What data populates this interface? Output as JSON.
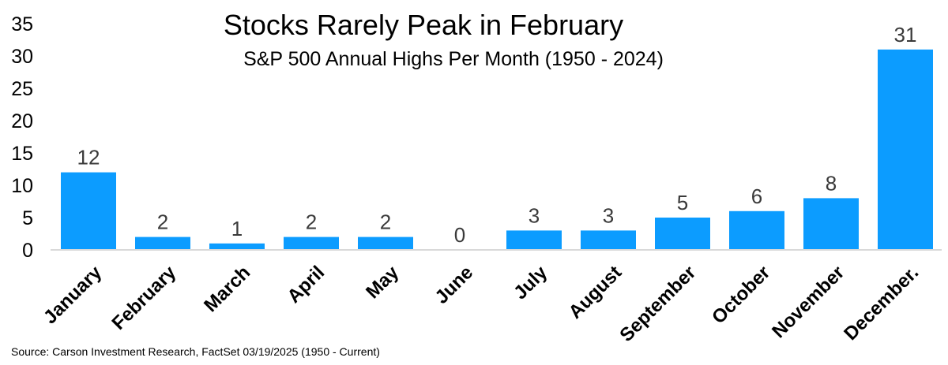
{
  "chart_data": {
    "type": "bar",
    "title": "Stocks Rarely Peak in February",
    "subtitle": "S&P 500 Annual Highs Per Month (1950 - 2024)",
    "categories": [
      "January",
      "February",
      "March",
      "April",
      "May",
      "June",
      "July",
      "August",
      "September",
      "October",
      "November",
      "December."
    ],
    "values": [
      12,
      2,
      1,
      2,
      2,
      0,
      3,
      3,
      5,
      6,
      8,
      31
    ],
    "data_labels": [
      "12",
      "2",
      "1",
      "2",
      "2",
      "0",
      "3",
      "3",
      "5",
      "6",
      "8",
      "31"
    ],
    "yticks": [
      "0",
      "5",
      "10",
      "15",
      "20",
      "25",
      "30",
      "35"
    ],
    "ylim": [
      0,
      35
    ],
    "xlabel": "",
    "ylabel": "",
    "grid": false,
    "legend": "none",
    "bar_color": "#0c9cff",
    "axis_color": "#d9d9d9"
  },
  "source_note": "Source: Carson Investment Research, FactSet 03/19/2025 (1950 - Current)"
}
